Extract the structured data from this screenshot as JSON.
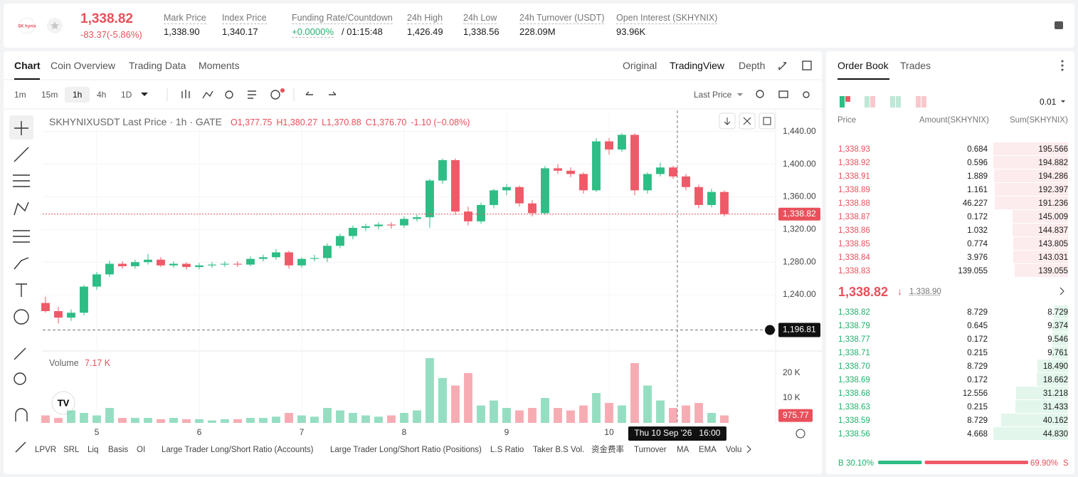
{
  "header": {
    "logo": "SK hynix",
    "price": "1,338.82",
    "change": "-83.37(-5.86%)",
    "stats": [
      {
        "label": "Mark Price",
        "value": "1,338.90"
      },
      {
        "label": "Index Price",
        "value": "1,340.17"
      },
      {
        "label": "Funding Rate/Countdown",
        "value": "+0.0000%",
        "extra": "/ 01:15:48"
      },
      {
        "label": "24h High",
        "value": "1,426.49"
      },
      {
        "label": "24h Low",
        "value": "1,338.56"
      },
      {
        "label": "24h Turnover (USDT)",
        "value": "228.09M"
      },
      {
        "label": "Open Interest (SKHYNIX)",
        "value": "93.96K"
      }
    ]
  },
  "chart_tabs": [
    "Chart",
    "Coin Overview",
    "Trading Data",
    "Moments"
  ],
  "view_tabs": [
    "Original",
    "TradingView",
    "Depth"
  ],
  "intervals": [
    "1m",
    "15m",
    "1h",
    "4h",
    "1D"
  ],
  "price_type": "Last Price",
  "chart_data": {
    "type": "candlestick",
    "title": "SKHYNIXUSDT Last Price · 1h · GATE",
    "legend": [
      "O1,377.75",
      "H1,380.27",
      "L1,370.88",
      "C1,376.70",
      "-1.10 (−0.08%)"
    ],
    "up_color": "#2ebd85",
    "down_color": "#ef5a68",
    "candles": [
      {
        "o": 1230,
        "h": 1238,
        "l": 1218,
        "c": 1220
      },
      {
        "o": 1220,
        "h": 1225,
        "l": 1205,
        "c": 1212
      },
      {
        "o": 1212,
        "h": 1222,
        "l": 1208,
        "c": 1218
      },
      {
        "o": 1218,
        "h": 1252,
        "l": 1215,
        "c": 1250
      },
      {
        "o": 1250,
        "h": 1268,
        "l": 1246,
        "c": 1265
      },
      {
        "o": 1265,
        "h": 1282,
        "l": 1262,
        "c": 1278
      },
      {
        "o": 1278,
        "h": 1281,
        "l": 1272,
        "c": 1275
      },
      {
        "o": 1275,
        "h": 1283,
        "l": 1272,
        "c": 1280
      },
      {
        "o": 1280,
        "h": 1290,
        "l": 1277,
        "c": 1283
      },
      {
        "o": 1283,
        "h": 1286,
        "l": 1274,
        "c": 1276
      },
      {
        "o": 1276,
        "h": 1281,
        "l": 1273,
        "c": 1278
      },
      {
        "o": 1278,
        "h": 1280,
        "l": 1271,
        "c": 1274
      },
      {
        "o": 1274,
        "h": 1279,
        "l": 1271,
        "c": 1276
      },
      {
        "o": 1276,
        "h": 1280,
        "l": 1273,
        "c": 1277
      },
      {
        "o": 1277,
        "h": 1281,
        "l": 1274,
        "c": 1278
      },
      {
        "o": 1278,
        "h": 1281,
        "l": 1274,
        "c": 1277
      },
      {
        "o": 1277,
        "h": 1287,
        "l": 1275,
        "c": 1284
      },
      {
        "o": 1284,
        "h": 1289,
        "l": 1281,
        "c": 1286
      },
      {
        "o": 1286,
        "h": 1296,
        "l": 1283,
        "c": 1292
      },
      {
        "o": 1292,
        "h": 1294,
        "l": 1272,
        "c": 1276
      },
      {
        "o": 1276,
        "h": 1286,
        "l": 1273,
        "c": 1284
      },
      {
        "o": 1284,
        "h": 1289,
        "l": 1281,
        "c": 1285
      },
      {
        "o": 1285,
        "h": 1303,
        "l": 1280,
        "c": 1300
      },
      {
        "o": 1300,
        "h": 1315,
        "l": 1297,
        "c": 1312
      },
      {
        "o": 1312,
        "h": 1325,
        "l": 1308,
        "c": 1322
      },
      {
        "o": 1322,
        "h": 1327,
        "l": 1318,
        "c": 1324
      },
      {
        "o": 1324,
        "h": 1329,
        "l": 1320,
        "c": 1326
      },
      {
        "o": 1326,
        "h": 1329,
        "l": 1321,
        "c": 1325
      },
      {
        "o": 1325,
        "h": 1336,
        "l": 1322,
        "c": 1333
      },
      {
        "o": 1333,
        "h": 1338,
        "l": 1330,
        "c": 1335
      },
      {
        "o": 1335,
        "h": 1382,
        "l": 1322,
        "c": 1380
      },
      {
        "o": 1380,
        "h": 1407,
        "l": 1376,
        "c": 1405
      },
      {
        "o": 1405,
        "h": 1407,
        "l": 1338,
        "c": 1342
      },
      {
        "o": 1342,
        "h": 1348,
        "l": 1325,
        "c": 1330
      },
      {
        "o": 1330,
        "h": 1353,
        "l": 1327,
        "c": 1350
      },
      {
        "o": 1350,
        "h": 1370,
        "l": 1346,
        "c": 1368
      },
      {
        "o": 1368,
        "h": 1376,
        "l": 1362,
        "c": 1372
      },
      {
        "o": 1372,
        "h": 1374,
        "l": 1348,
        "c": 1352
      },
      {
        "o": 1352,
        "h": 1356,
        "l": 1336,
        "c": 1340
      },
      {
        "o": 1340,
        "h": 1398,
        "l": 1338,
        "c": 1395
      },
      {
        "o": 1395,
        "h": 1400,
        "l": 1388,
        "c": 1392
      },
      {
        "o": 1392,
        "h": 1396,
        "l": 1384,
        "c": 1388
      },
      {
        "o": 1388,
        "h": 1390,
        "l": 1364,
        "c": 1368
      },
      {
        "o": 1368,
        "h": 1432,
        "l": 1366,
        "c": 1428
      },
      {
        "o": 1428,
        "h": 1432,
        "l": 1412,
        "c": 1418
      },
      {
        "o": 1418,
        "h": 1438,
        "l": 1415,
        "c": 1436
      },
      {
        "o": 1436,
        "h": 1438,
        "l": 1362,
        "c": 1368
      },
      {
        "o": 1368,
        "h": 1390,
        "l": 1364,
        "c": 1388
      },
      {
        "o": 1388,
        "h": 1402,
        "l": 1385,
        "c": 1396
      },
      {
        "o": 1396,
        "h": 1398,
        "l": 1382,
        "c": 1385
      },
      {
        "o": 1385,
        "h": 1388,
        "l": 1368,
        "c": 1372
      },
      {
        "o": 1372,
        "h": 1375,
        "l": 1346,
        "c": 1350
      },
      {
        "o": 1350,
        "h": 1370,
        "l": 1347,
        "c": 1366
      },
      {
        "o": 1366,
        "h": 1368,
        "l": 1336,
        "c": 1339
      }
    ],
    "ylim": [
      1172,
      1466
    ],
    "yticks": [
      {
        "value": 1240,
        "label": "1,240.00"
      },
      {
        "value": 1280,
        "label": "1,280.00"
      },
      {
        "value": 1320,
        "label": "1,320.00"
      },
      {
        "value": 1360,
        "label": "1,360.00"
      },
      {
        "value": 1400,
        "label": "1,400.00"
      },
      {
        "value": 1440,
        "label": "1,440.00"
      }
    ],
    "xlim": [
      -0.22,
      57
    ],
    "xticks": [
      {
        "value": 4,
        "label": "5"
      },
      {
        "value": 12,
        "label": "6"
      },
      {
        "value": 20,
        "label": "7"
      },
      {
        "value": 28,
        "label": "8"
      },
      {
        "value": 36,
        "label": "9"
      },
      {
        "value": 44,
        "label": "10"
      }
    ],
    "last_price": {
      "value": 1338.82,
      "label": "1,338.82"
    },
    "crosshair": {
      "price": {
        "value": 1196.81,
        "label": "1,196.81"
      },
      "time": {
        "value": 49.33,
        "label": "Thu 10 Sep '26   16:00"
      }
    },
    "volume": {
      "label": "Volume",
      "current": "7.17 K",
      "values": [
        3,
        2,
        5,
        4,
        3,
        6,
        2,
        2,
        2,
        1.5,
        2,
        1.5,
        1.5,
        1,
        1.5,
        1.5,
        2,
        2,
        2.5,
        4,
        3,
        2.5,
        6,
        5,
        4,
        3,
        2.5,
        3,
        4,
        5,
        26,
        18,
        15,
        20,
        7,
        9,
        6,
        5,
        6,
        10,
        6,
        5,
        7,
        12,
        8,
        7,
        24,
        15,
        9,
        6,
        7,
        8,
        4,
        3
      ],
      "ylim": [
        0,
        28
      ],
      "yticks": [
        {
          "value": 10,
          "label": "10 K"
        },
        {
          "value": 20,
          "label": "20 K"
        }
      ],
      "last": {
        "value": 0.97577,
        "label": "975.77"
      }
    }
  },
  "indicators": [
    "LPVR",
    "SRL",
    "Liq",
    "Basis",
    "OI",
    "Large Trader Long/Short Ratio (Accounts)",
    "Large Trader Long/Short Ratio (Positions)",
    "L.S Ratio",
    "Taker B.S Vol.",
    "资金费率",
    "Turnover",
    "MA",
    "EMA",
    "Volu"
  ],
  "order_book": {
    "tabs": [
      "Order Book",
      "Trades"
    ],
    "tick_size": "0.01",
    "columns": [
      "Price",
      "Amount(SKHYNIX)",
      "Sum(SKHYNIX)"
    ],
    "asks": [
      {
        "price": "1,338.93",
        "amount": "0.684",
        "sum": "195.566"
      },
      {
        "price": "1,338.92",
        "amount": "0.596",
        "sum": "194.882"
      },
      {
        "price": "1,338.91",
        "amount": "1.889",
        "sum": "194.286"
      },
      {
        "price": "1,338.89",
        "amount": "1.161",
        "sum": "192.397"
      },
      {
        "price": "1,338.88",
        "amount": "46.227",
        "sum": "191.236"
      },
      {
        "price": "1,338.87",
        "amount": "0.172",
        "sum": "145.009"
      },
      {
        "price": "1,338.86",
        "amount": "1.032",
        "sum": "144.837"
      },
      {
        "price": "1,338.85",
        "amount": "0.774",
        "sum": "143.805"
      },
      {
        "price": "1,338.84",
        "amount": "3.976",
        "sum": "143.031"
      },
      {
        "price": "1,338.83",
        "amount": "139.055",
        "sum": "139.055"
      }
    ],
    "mid_price": "1,338.82",
    "mark_price": "1,338.90",
    "bids": [
      {
        "price": "1,338.82",
        "amount": "8.729",
        "sum": "8.729"
      },
      {
        "price": "1,338.79",
        "amount": "0.645",
        "sum": "9.374"
      },
      {
        "price": "1,338.77",
        "amount": "0.172",
        "sum": "9.546"
      },
      {
        "price": "1,338.71",
        "amount": "0.215",
        "sum": "9.761"
      },
      {
        "price": "1,338.70",
        "amount": "8.729",
        "sum": "18.490"
      },
      {
        "price": "1,338.69",
        "amount": "0.172",
        "sum": "18.662"
      },
      {
        "price": "1,338.68",
        "amount": "12.556",
        "sum": "31.218"
      },
      {
        "price": "1,338.63",
        "amount": "0.215",
        "sum": "31.433"
      },
      {
        "price": "1,338.59",
        "amount": "8.729",
        "sum": "40.162"
      },
      {
        "price": "1,338.56",
        "amount": "4.668",
        "sum": "44.830"
      }
    ],
    "buy_letter": "B",
    "sell_letter": "S",
    "buy_ratio": {
      "value": 30.1,
      "label": "30.10%"
    },
    "sell_ratio": {
      "value": 69.9,
      "label": "69.90%"
    }
  }
}
